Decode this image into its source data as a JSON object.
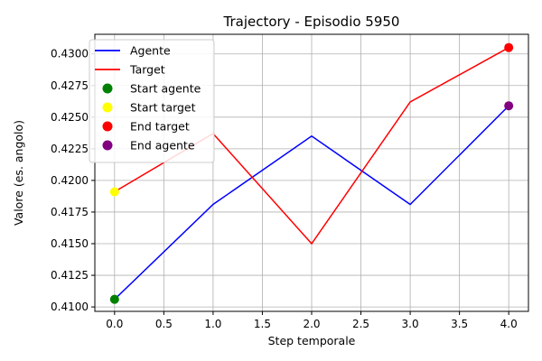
{
  "chart_data": {
    "type": "line",
    "title": "Trajectory - Episodio 5950",
    "xlabel": "Step temporale",
    "ylabel": "Valore (es. angolo)",
    "xlim": [
      -0.2,
      4.2
    ],
    "ylim": [
      0.40965,
      0.43155
    ],
    "xticks": [
      0.0,
      0.5,
      1.0,
      1.5,
      2.0,
      2.5,
      3.0,
      3.5,
      4.0
    ],
    "xtick_labels": [
      "0.0",
      "0.5",
      "1.0",
      "1.5",
      "2.0",
      "2.5",
      "3.0",
      "3.5",
      "4.0"
    ],
    "yticks": [
      0.41,
      0.4125,
      0.415,
      0.4175,
      0.42,
      0.4225,
      0.425,
      0.4275,
      0.43
    ],
    "ytick_labels": [
      "0.4100",
      "0.4125",
      "0.4150",
      "0.4175",
      "0.4200",
      "0.4225",
      "0.4250",
      "0.4275",
      "0.4300"
    ],
    "grid": true,
    "legend_position": "top-left",
    "series": [
      {
        "name": "Agente",
        "kind": "line",
        "color": "#0000ff",
        "x": [
          0,
          1,
          2,
          3,
          4
        ],
        "y": [
          0.4106,
          0.4181,
          0.4235,
          0.4181,
          0.4259
        ]
      },
      {
        "name": "Target",
        "kind": "line",
        "color": "#ff0000",
        "x": [
          0,
          1,
          2,
          3,
          4
        ],
        "y": [
          0.4191,
          0.4237,
          0.415,
          0.4262,
          0.4305
        ]
      }
    ],
    "markers": [
      {
        "name": "Start agente",
        "color": "#008000",
        "x": 0,
        "y": 0.4106
      },
      {
        "name": "Start target",
        "color": "#ffff00",
        "x": 0,
        "y": 0.4191
      },
      {
        "name": "End target",
        "color": "#ff0000",
        "x": 4,
        "y": 0.4305
      },
      {
        "name": "End agente",
        "color": "#800080",
        "x": 4,
        "y": 0.4259
      }
    ]
  }
}
